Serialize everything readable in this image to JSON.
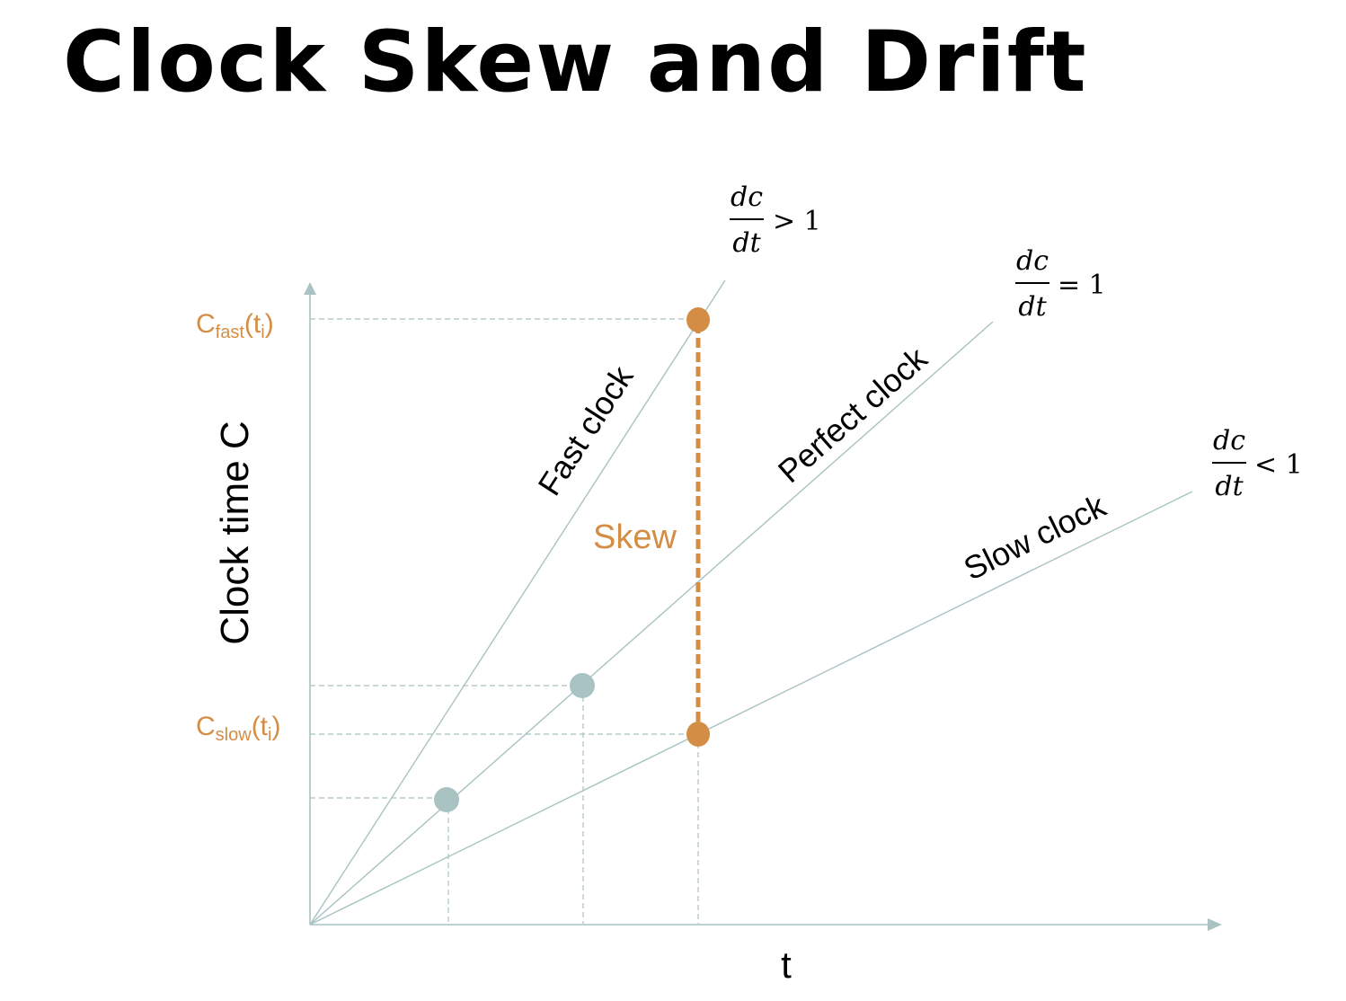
{
  "title": "Clock Skew and Drift",
  "axes": {
    "y_label": "Clock time C",
    "x_label": "t"
  },
  "ticks": {
    "fast": {
      "base": "C",
      "sub": "fast",
      "paren_open": "(t",
      "sub_i": "i",
      "paren_close": ")"
    },
    "slow": {
      "base": "C",
      "sub": "slow",
      "paren_open": "(t",
      "sub_i": "i",
      "paren_close": ")"
    }
  },
  "lines": {
    "fast": "Fast clock",
    "perfect": "Perfect clock",
    "slow": "Slow clock"
  },
  "rates": {
    "fast": {
      "num": "dc",
      "den": "dt",
      "rel": "> 1"
    },
    "perfect": {
      "num": "dc",
      "den": "dt",
      "rel": "= 1"
    },
    "slow": {
      "num": "dc",
      "den": "dt",
      "rel": "< 1"
    }
  },
  "skew_label": "Skew",
  "colors": {
    "accent": "#D38D45",
    "axis": "#A9C2C2",
    "point": "#A9C2C2",
    "text": "#000000"
  }
}
